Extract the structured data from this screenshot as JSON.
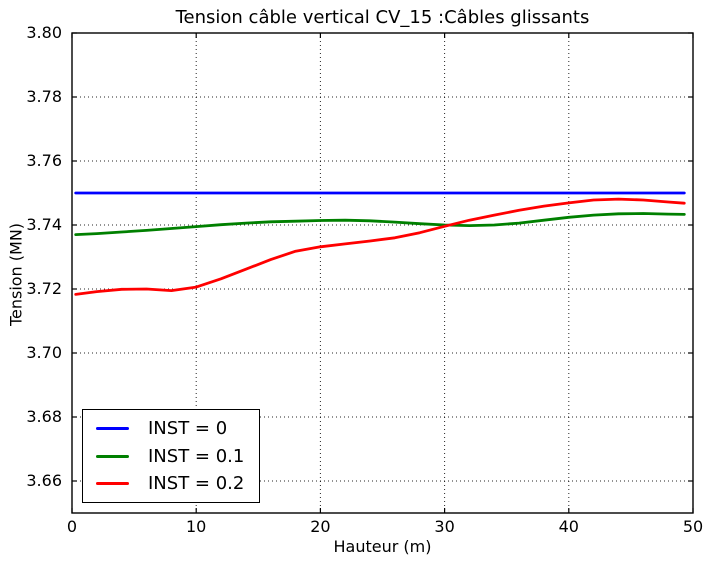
{
  "chart_data": {
    "type": "line",
    "title": "Tension câble vertical CV_15 :Câbles glissants",
    "xlabel": "Hauteur (m)",
    "ylabel": "Tension (MN)",
    "xlim": [
      0,
      50
    ],
    "ylim": [
      3.65,
      3.8
    ],
    "xticks": [
      0,
      10,
      20,
      30,
      40,
      50
    ],
    "xtick_labels": [
      "0",
      "10",
      "20",
      "30",
      "40",
      "50"
    ],
    "yticks": [
      3.66,
      3.68,
      3.7,
      3.72,
      3.74,
      3.76,
      3.78,
      3.8
    ],
    "ytick_labels": [
      "3.66",
      "3.68",
      "3.70",
      "3.72",
      "3.74",
      "3.76",
      "3.78",
      "3.80"
    ],
    "grid": true,
    "legend_position": "lower left",
    "series": [
      {
        "id": "inst-0",
        "name": "INST = 0",
        "color": "#0000ff",
        "x": [
          0.3,
          49.3
        ],
        "y": [
          3.75,
          3.75
        ]
      },
      {
        "id": "inst-0-1",
        "name": "INST = 0.1",
        "color": "#008000",
        "x": [
          0.3,
          2,
          4,
          6,
          8,
          10,
          12,
          14,
          16,
          18,
          20,
          22,
          24,
          26,
          28,
          30,
          32,
          34,
          36,
          38,
          40,
          42,
          44,
          46,
          48,
          49.3
        ],
        "y": [
          3.737,
          3.7373,
          3.7378,
          3.7383,
          3.7389,
          3.7395,
          3.7401,
          3.7406,
          3.741,
          3.7412,
          3.7414,
          3.7415,
          3.7413,
          3.7409,
          3.7404,
          3.74,
          3.7398,
          3.74,
          3.7406,
          3.7415,
          3.7424,
          3.7431,
          3.7435,
          3.7436,
          3.7434,
          3.7433
        ]
      },
      {
        "id": "inst-0-2",
        "name": "INST = 0.2",
        "color": "#ff0000",
        "x": [
          0.3,
          2,
          4,
          6,
          8,
          10,
          12,
          14,
          16,
          18,
          20,
          22,
          24,
          26,
          28,
          30,
          32,
          34,
          36,
          38,
          40,
          42,
          44,
          46,
          48,
          49.3
        ],
        "y": [
          3.7183,
          3.7192,
          3.7199,
          3.72,
          3.7195,
          3.7206,
          3.7232,
          3.7262,
          3.7292,
          3.7318,
          3.7332,
          3.7341,
          3.735,
          3.736,
          3.7376,
          3.7396,
          3.7415,
          3.7431,
          3.7446,
          3.7459,
          3.7469,
          3.7478,
          3.7481,
          3.7478,
          3.7472,
          3.7468
        ]
      }
    ]
  }
}
